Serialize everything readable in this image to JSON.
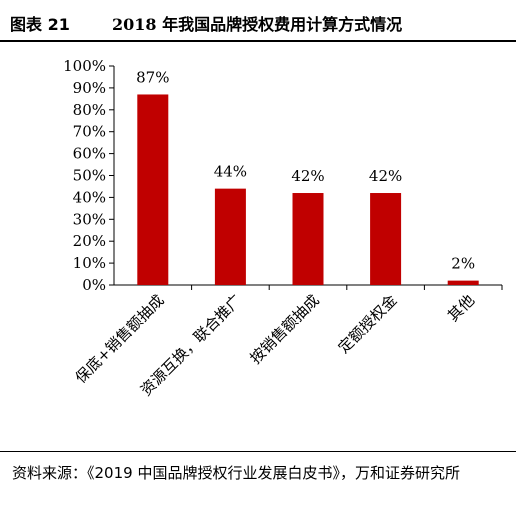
{
  "header": {
    "figure_label": "图表 21",
    "title": "2018 年我国品牌授权费用计算方式情况"
  },
  "chart_data": {
    "type": "bar",
    "categories": [
      "保底+销售额抽成",
      "资源互换，联合推广",
      "按销售额抽成",
      "定额授权金",
      "其他"
    ],
    "values": [
      87,
      44,
      42,
      42,
      2
    ],
    "data_labels": [
      "87%",
      "44%",
      "42%",
      "42%",
      "2%"
    ],
    "y_ticks": [
      "0%",
      "10%",
      "20%",
      "30%",
      "40%",
      "50%",
      "60%",
      "70%",
      "80%",
      "90%",
      "100%"
    ],
    "ylim": [
      0,
      100
    ],
    "grid": false,
    "legend": "none",
    "bar_color": "#c00000"
  },
  "footer": {
    "source": "资料来源：《2019 中国品牌授权行业发展白皮书》，万和证券研究所"
  }
}
